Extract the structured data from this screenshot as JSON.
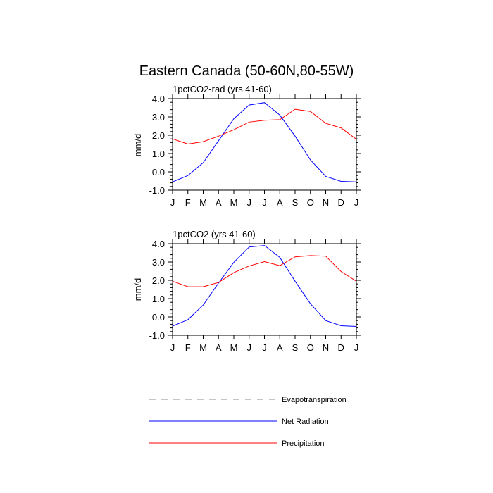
{
  "title": "Eastern Canada (50-60N,80-55W)",
  "legend": [
    {
      "name": "Evapotranspiration",
      "color": "#888888",
      "dash": true
    },
    {
      "name": "Net Radiation",
      "color": "#0000ff",
      "dash": false
    },
    {
      "name": "Precipitation",
      "color": "#ff0000",
      "dash": false
    }
  ],
  "chart_data": [
    {
      "type": "line",
      "title": "1pctCO2-rad (yrs 41-60)",
      "ylabel": "mm/d",
      "xlabel": "",
      "categories": [
        "J",
        "F",
        "M",
        "A",
        "M",
        "J",
        "J",
        "A",
        "S",
        "O",
        "N",
        "D",
        "J"
      ],
      "ylim": [
        -1.0,
        4.0
      ],
      "yticks": [
        "4.0",
        "3.0",
        "2.0",
        "1.0",
        "0.0",
        "-1.0"
      ],
      "series": [
        {
          "name": "Net Radiation",
          "color": "#0000ff",
          "values": [
            -0.55,
            -0.2,
            0.5,
            1.7,
            2.9,
            3.65,
            3.78,
            3.1,
            1.95,
            0.65,
            -0.25,
            -0.52,
            -0.55
          ]
        },
        {
          "name": "Precipitation",
          "color": "#ff0000",
          "values": [
            1.8,
            1.52,
            1.65,
            1.95,
            2.3,
            2.72,
            2.82,
            2.85,
            3.42,
            3.3,
            2.65,
            2.4,
            1.78
          ]
        }
      ]
    },
    {
      "type": "line",
      "title": "1pctCO2 (yrs 41-60)",
      "ylabel": "mm/d",
      "xlabel": "",
      "categories": [
        "J",
        "F",
        "M",
        "A",
        "M",
        "J",
        "J",
        "A",
        "S",
        "O",
        "N",
        "D",
        "J"
      ],
      "ylim": [
        -1.0,
        4.0
      ],
      "yticks": [
        "4.0",
        "3.0",
        "2.0",
        "1.0",
        "0.0",
        "-1.0"
      ],
      "series": [
        {
          "name": "Net Radiation",
          "color": "#0000ff",
          "values": [
            -0.5,
            -0.15,
            0.65,
            1.85,
            2.98,
            3.82,
            3.9,
            3.25,
            1.95,
            0.72,
            -0.2,
            -0.48,
            -0.52
          ]
        },
        {
          "name": "Precipitation",
          "color": "#ff0000",
          "values": [
            1.95,
            1.65,
            1.65,
            1.88,
            2.42,
            2.78,
            3.02,
            2.8,
            3.28,
            3.35,
            3.32,
            2.48,
            1.95
          ]
        }
      ]
    }
  ]
}
